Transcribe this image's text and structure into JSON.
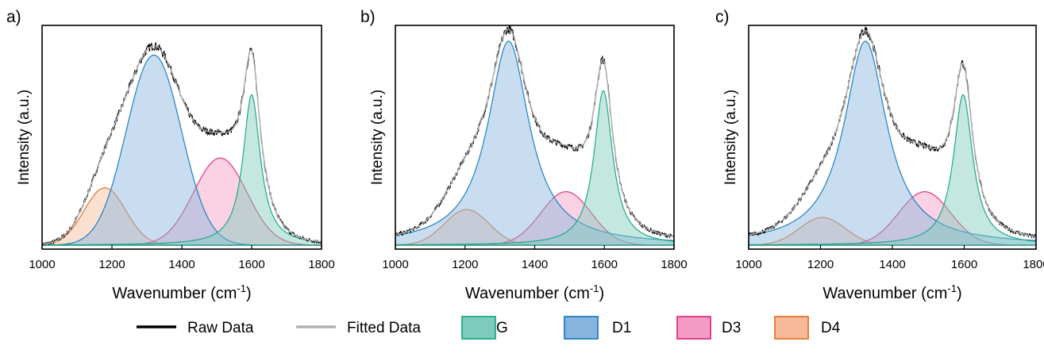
{
  "figure": {
    "xlabel_main": "Wavenumber (cm",
    "xlabel_sup": "-1",
    "xlabel_end": ")",
    "ylabel": "Intensity (a.u.)"
  },
  "legend": {
    "placement": "bottom-center",
    "items": [
      {
        "label": "Raw Data",
        "kind": "line",
        "color": "#000000"
      },
      {
        "label": "Fitted Data",
        "kind": "line",
        "color": "#b0b0b0"
      },
      {
        "label": "G",
        "kind": "area",
        "stroke": "#1fa98a",
        "fill": "#7dccbb"
      },
      {
        "label": "D1",
        "kind": "area",
        "stroke": "#1e7fc2",
        "fill": "#86b6dd"
      },
      {
        "label": "D3",
        "kind": "area",
        "stroke": "#e0357f",
        "fill": "#f39bc4"
      },
      {
        "label": "D4",
        "kind": "area",
        "stroke": "#e8752c",
        "fill": "#f7b999"
      }
    ]
  },
  "chart_data": [
    {
      "panel": "a)",
      "type": "area",
      "xlim": [
        1000,
        1800
      ],
      "ylim": [
        0,
        1.13
      ],
      "xticks": [
        1000,
        1200,
        1400,
        1600,
        1800
      ],
      "grid": false,
      "baseline": 0.02,
      "series": [
        {
          "name": "G",
          "peak": "lorentzian",
          "center": 1600,
          "fwhm": 60,
          "height": 0.76
        },
        {
          "name": "D1",
          "peak": "gaussian",
          "center": 1320,
          "fwhm": 185,
          "height": 0.96
        },
        {
          "name": "D3",
          "peak": "gaussian",
          "center": 1510,
          "fwhm": 180,
          "height": 0.44
        },
        {
          "name": "D4",
          "peak": "gaussian",
          "center": 1180,
          "fwhm": 140,
          "height": 0.29
        }
      ]
    },
    {
      "panel": "b)",
      "type": "area",
      "xlim": [
        1000,
        1800
      ],
      "ylim": [
        0,
        1.13
      ],
      "xticks": [
        1000,
        1200,
        1400,
        1600,
        1800
      ],
      "grid": false,
      "baseline": 0.02,
      "series": [
        {
          "name": "G",
          "peak": "lorentzian",
          "center": 1597,
          "fwhm": 65,
          "height": 0.78
        },
        {
          "name": "D1",
          "peak": "lorentzian",
          "center": 1325,
          "fwhm": 145,
          "height": 1.03
        },
        {
          "name": "D3",
          "peak": "gaussian",
          "center": 1490,
          "fwhm": 170,
          "height": 0.27
        },
        {
          "name": "D4",
          "peak": "gaussian",
          "center": 1205,
          "fwhm": 150,
          "height": 0.18
        }
      ]
    },
    {
      "panel": "c)",
      "type": "area",
      "xlim": [
        1000,
        1800
      ],
      "ylim": [
        0,
        1.13
      ],
      "xticks": [
        1000,
        1200,
        1400,
        1600,
        1800
      ],
      "grid": false,
      "baseline": 0.02,
      "series": [
        {
          "name": "G",
          "peak": "lorentzian",
          "center": 1597,
          "fwhm": 65,
          "height": 0.76
        },
        {
          "name": "D1",
          "peak": "lorentzian",
          "center": 1325,
          "fwhm": 145,
          "height": 1.03
        },
        {
          "name": "D3",
          "peak": "gaussian",
          "center": 1490,
          "fwhm": 170,
          "height": 0.27
        },
        {
          "name": "D4",
          "peak": "gaussian",
          "center": 1205,
          "fwhm": 150,
          "height": 0.14
        }
      ]
    }
  ]
}
